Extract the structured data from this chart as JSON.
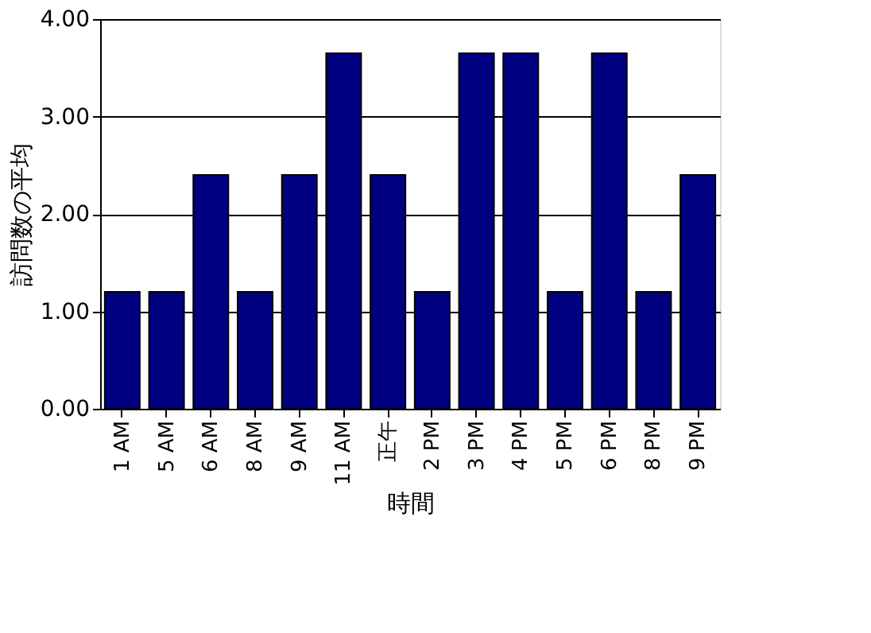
{
  "chart_data": {
    "type": "bar",
    "xlabel": "時間",
    "ylabel": "訪問数の平均",
    "categories": [
      "1 AM",
      "5 AM",
      "6 AM",
      "8 AM",
      "9 AM",
      "11 AM",
      "正午",
      "2 PM",
      "3 PM",
      "4 PM",
      "5 PM",
      "6 PM",
      "8 PM",
      "9 PM"
    ],
    "values": [
      1.2,
      1.2,
      2.4,
      1.2,
      2.4,
      3.65,
      2.4,
      1.2,
      3.65,
      3.65,
      1.2,
      3.65,
      1.2,
      2.4
    ],
    "color": "#000080",
    "ylim": [
      0,
      4
    ],
    "yticks": [
      {
        "value": 0,
        "label": "0.00"
      },
      {
        "value": 1,
        "label": "1.00"
      },
      {
        "value": 2,
        "label": "2.00"
      },
      {
        "value": 3,
        "label": "3.00"
      },
      {
        "value": 4,
        "label": "4.00"
      }
    ],
    "grid": "y"
  }
}
